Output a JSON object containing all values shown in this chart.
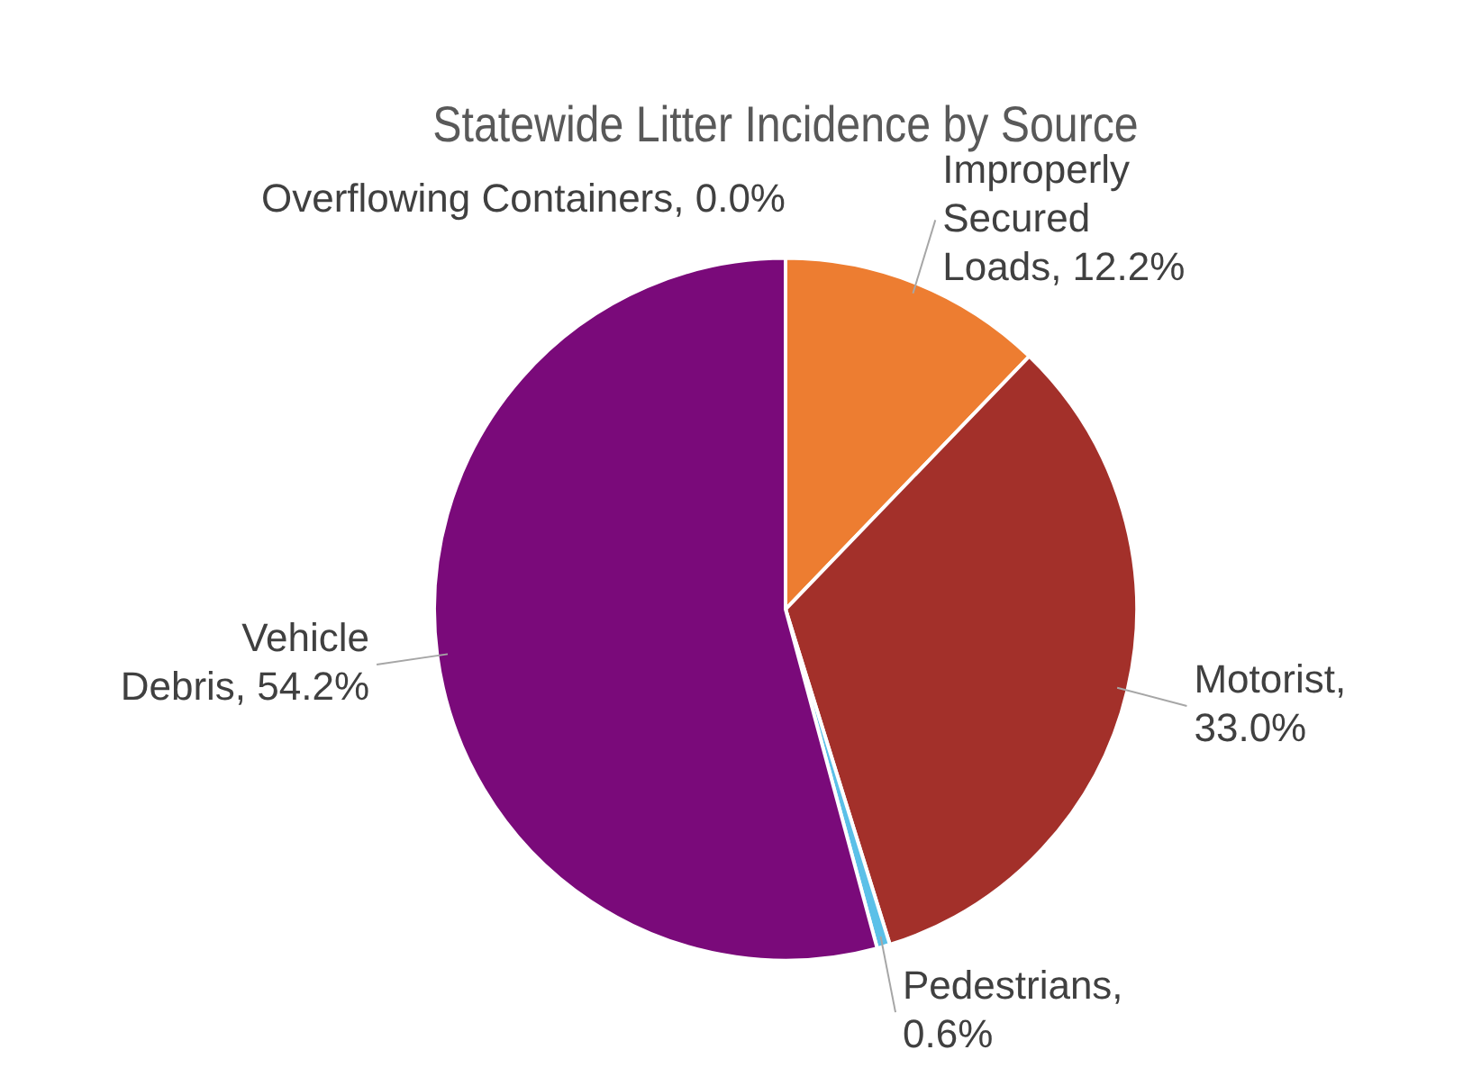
{
  "chart_data": {
    "type": "pie",
    "title": "Statewide Litter Incidence by Source",
    "categories": [
      "Improperly Secured Loads",
      "Motorist",
      "Pedestrians",
      "Vehicle Debris",
      "Overflowing Containers"
    ],
    "values": [
      12.2,
      33.0,
      0.6,
      54.2,
      0.0
    ],
    "value_labels": [
      ", 12.2%",
      ", 33.0%",
      ", 0.6%",
      ", 54.2%",
      ", 0.0%"
    ],
    "colors": [
      "#ed7d31",
      "#a3302a",
      "#5bc0e8",
      "#7a0a7a",
      "#4472c4"
    ],
    "legend": false
  }
}
